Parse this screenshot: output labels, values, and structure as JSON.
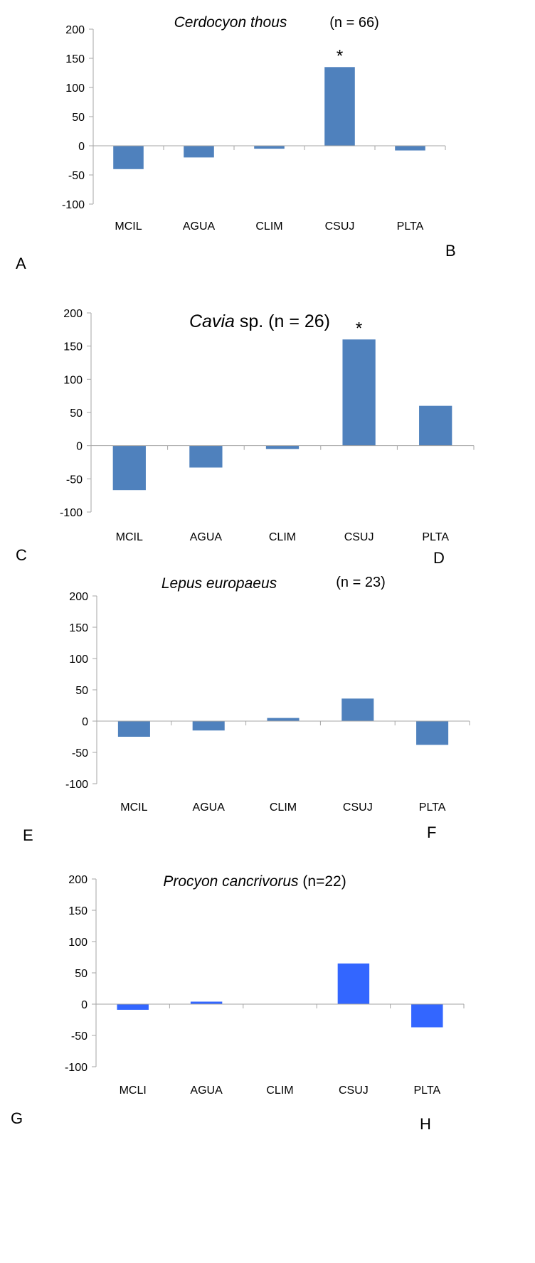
{
  "panel_labels": [
    "A",
    "B",
    "C",
    "D",
    "E",
    "F",
    "G",
    "H"
  ],
  "chart_data": [
    {
      "type": "bar",
      "title_italic": "Cerdocyon thous",
      "title_rest": "",
      "n_text": "(n = 66)",
      "categories": [
        "MCIL",
        "AGUA",
        "CLIM",
        "CSUJ",
        "PLTA"
      ],
      "values": [
        -40,
        -20,
        -5,
        135,
        -8
      ],
      "ylim": [
        -100,
        200
      ],
      "yticks": [
        -100,
        -50,
        0,
        50,
        100,
        150,
        200
      ],
      "significance": [
        "",
        "",
        "",
        "*",
        ""
      ],
      "color": "#4f81bd",
      "grid": false
    },
    {
      "type": "bar",
      "title_italic": "Cavia",
      "title_rest": " sp. (n = 26)",
      "n_text": "",
      "categories": [
        "MCIL",
        "AGUA",
        "CLIM",
        "CSUJ",
        "PLTA"
      ],
      "values": [
        -67,
        -33,
        -5,
        160,
        60
      ],
      "ylim": [
        -100,
        200
      ],
      "yticks": [
        -100,
        -50,
        0,
        50,
        100,
        150,
        200
      ],
      "significance": [
        "",
        "",
        "",
        "*",
        ""
      ],
      "color": "#4f81bd",
      "grid": false
    },
    {
      "type": "bar",
      "title_italic": "Lepus europaeus",
      "title_rest": "",
      "n_text": "(n = 23)",
      "categories": [
        "MCIL",
        "AGUA",
        "CLIM",
        "CSUJ",
        "PLTA"
      ],
      "values": [
        -25,
        -15,
        5,
        36,
        -38
      ],
      "ylim": [
        -100,
        200
      ],
      "yticks": [
        -100,
        -50,
        0,
        50,
        100,
        150,
        200
      ],
      "significance": [
        "",
        "",
        "",
        "",
        ""
      ],
      "color": "#4f81bd",
      "grid": false
    },
    {
      "type": "bar",
      "title_italic": "Procyon cancrivorus",
      "title_rest": " (n=22)",
      "n_text": "",
      "categories": [
        "MCLI",
        "AGUA",
        "CLIM",
        "CSUJ",
        "PLTA"
      ],
      "values": [
        -9,
        4,
        0,
        65,
        -37
      ],
      "ylim": [
        -100,
        200
      ],
      "yticks": [
        -100,
        -50,
        0,
        50,
        100,
        150,
        200
      ],
      "significance": [
        "",
        "",
        "",
        "",
        ""
      ],
      "color": "#3366ff",
      "grid": false
    }
  ]
}
